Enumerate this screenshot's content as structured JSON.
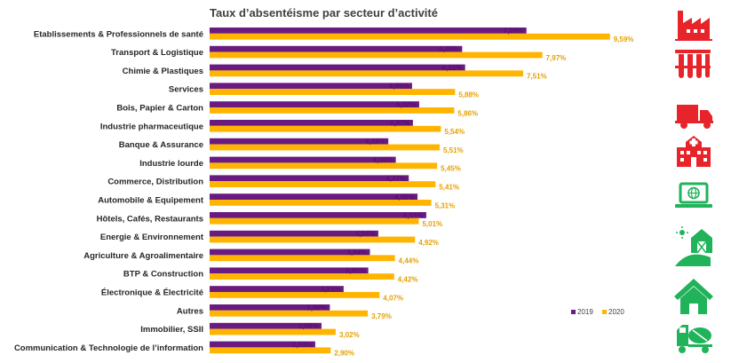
{
  "chart_data": {
    "type": "bar",
    "orientation": "horizontal",
    "title": "Taux d’absentéisme par secteur d’activité",
    "xlabel": "",
    "ylabel": "",
    "xlim": [
      0,
      10
    ],
    "grid": false,
    "legend_position": "bottom-right",
    "categories": [
      "Etablissements & Professionnels de santé",
      "Transport & Logistique",
      "Chimie & Plastiques",
      "Services",
      "Bois, Papier & Carton",
      "Industrie pharmaceutique",
      "Banque & Assurance",
      "Industrie lourde",
      "Commerce, Distribution",
      "Automobile & Equipement",
      "Hôtels, Cafés, Restaurants",
      "Energie & Environnement",
      "Agriculture & Agroalimentaire",
      "BTP & Construction",
      "Électronique &  Électricité",
      "Autres",
      "Immobilier, SSII",
      "Communication & Technologie de l’information"
    ],
    "series": [
      {
        "name": "2019",
        "color": "#6a1b80",
        "values": [
          7.59,
          6.05,
          6.12,
          4.85,
          5.02,
          4.87,
          4.28,
          4.46,
          4.77,
          4.98,
          5.19,
          4.04,
          3.84,
          3.8,
          3.21,
          2.88,
          2.68,
          2.53
        ],
        "labels": [
          "7,59%",
          "6,05%",
          "6,12%",
          "4,85%",
          "5,02%",
          "4,87%",
          "4,28%",
          "4,46%",
          "4,77%",
          "4,98%",
          "5,19%",
          "4,04%",
          "3,84%",
          "3,80%",
          "3,21%",
          "2,88%",
          "2,68%",
          "2,53%"
        ]
      },
      {
        "name": "2020",
        "color": "#ffb400",
        "values": [
          9.59,
          7.97,
          7.51,
          5.88,
          5.86,
          5.54,
          5.51,
          5.45,
          5.41,
          5.31,
          5.01,
          4.92,
          4.44,
          4.42,
          4.07,
          3.79,
          3.02,
          2.9
        ],
        "labels": [
          "9,59%",
          "7,97%",
          "7,51%",
          "5,88%",
          "5,86%",
          "5,54%",
          "5,51%",
          "5,45%",
          "5,41%",
          "5,31%",
          "5,01%",
          "4,92%",
          "4,44%",
          "4,42%",
          "4,07%",
          "3,79%",
          "3,02%",
          "2,90%"
        ]
      }
    ]
  },
  "side_icons": [
    {
      "icon": "factory-icon",
      "color": "#e8242b"
    },
    {
      "icon": "test-tubes-icon",
      "color": "#e8242b"
    },
    {
      "icon": "truck-icon",
      "color": "#e8242b"
    },
    {
      "icon": "hospital-icon",
      "color": "#e8242b"
    },
    {
      "icon": "laptop-globe-icon",
      "color": "#21b35a"
    },
    {
      "icon": "barn-sun-icon",
      "color": "#21b35a"
    },
    {
      "icon": "house-icon",
      "color": "#21b35a"
    },
    {
      "icon": "cement-truck-icon",
      "color": "#21b35a"
    }
  ]
}
